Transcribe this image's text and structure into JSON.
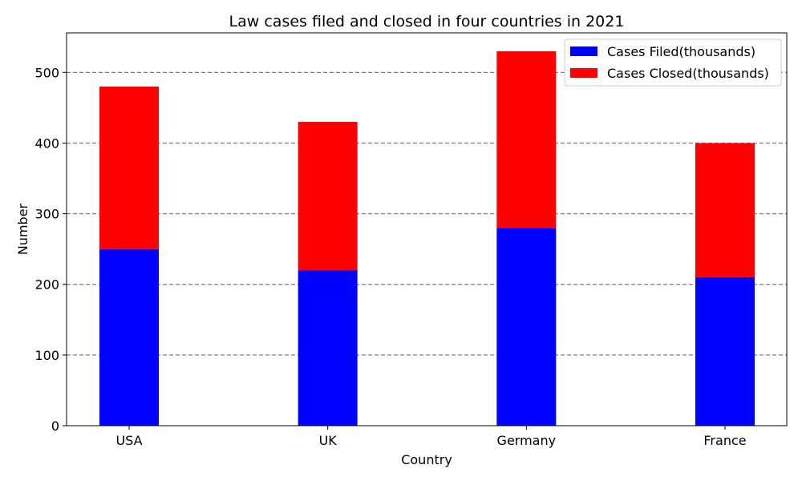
{
  "chart_data": {
    "type": "bar",
    "stacked": true,
    "title": "Law cases filed and closed in four countries in 2021",
    "xlabel": "Country",
    "ylabel": "Number",
    "categories": [
      "USA",
      "UK",
      "Germany",
      "France"
    ],
    "series": [
      {
        "name": "Cases Filed(thousands)",
        "values": [
          250,
          220,
          280,
          210
        ],
        "color": "#0000ff"
      },
      {
        "name": "Cases Closed(thousands)",
        "values": [
          230,
          210,
          250,
          190
        ],
        "color": "#ff0000"
      }
    ],
    "ylim": [
      0,
      556
    ],
    "yticks": [
      0,
      100,
      200,
      300,
      400,
      500
    ],
    "grid": "y-dashed",
    "grid_color": "#808080",
    "legend_position": "top-right"
  }
}
